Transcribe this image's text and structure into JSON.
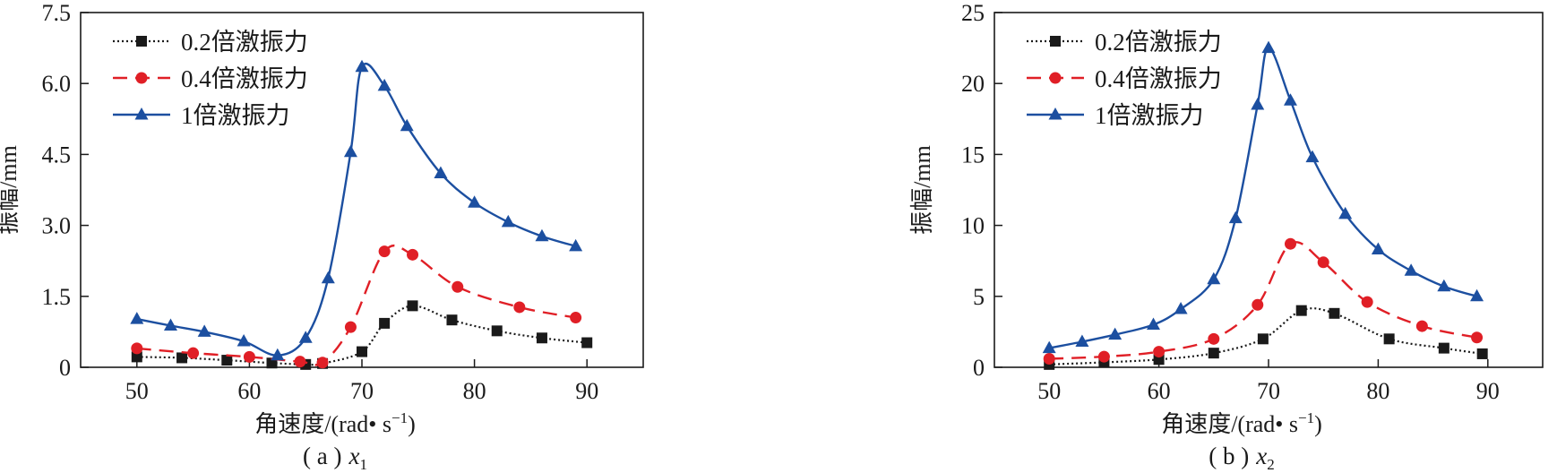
{
  "chart_data": [
    {
      "type": "line",
      "caption_prefix": "( a )",
      "caption_var": "x",
      "caption_sub": "1",
      "xlabel": "角速度/(rad• s",
      "xlabel_sup": "−1",
      "xlabel_end": ")",
      "ylabel": "振幅/mm",
      "xlim": [
        45,
        95
      ],
      "ylim": [
        0,
        7.5
      ],
      "xticks": [
        "50",
        "60",
        "70",
        "80",
        "90"
      ],
      "yticks": [
        "0",
        "1.5",
        "3.0",
        "4.5",
        "6.0",
        "7.5"
      ],
      "legend_position": "top-left",
      "series": [
        {
          "name": "0.2倍激振力",
          "color": "#1a1a1a",
          "marker": "square",
          "dash": "dotted",
          "x": [
            50,
            54,
            58,
            62,
            65,
            66.5,
            70,
            72,
            74.5,
            78,
            82,
            86,
            90
          ],
          "y": [
            0.22,
            0.2,
            0.15,
            0.09,
            0.06,
            0.08,
            0.33,
            0.93,
            1.3,
            1.0,
            0.77,
            0.62,
            0.52
          ]
        },
        {
          "name": "0.4倍激振力",
          "color": "#e01f26",
          "marker": "circle",
          "dash": "dashed",
          "x": [
            50,
            55,
            60,
            64.5,
            66.5,
            69,
            72,
            74.5,
            78.5,
            84,
            89
          ],
          "y": [
            0.4,
            0.3,
            0.22,
            0.12,
            0.1,
            0.85,
            2.45,
            2.38,
            1.7,
            1.27,
            1.05
          ]
        },
        {
          "name": "1倍激振力",
          "color": "#1c4fa0",
          "marker": "triangle",
          "dash": "solid",
          "x": [
            50,
            53,
            56,
            59.5,
            62.5,
            65,
            67,
            69,
            70,
            72,
            74,
            77,
            80,
            83,
            86,
            89
          ],
          "y": [
            1.02,
            0.88,
            0.75,
            0.55,
            0.25,
            0.62,
            1.88,
            4.55,
            6.35,
            5.95,
            5.1,
            4.1,
            3.48,
            3.07,
            2.77,
            2.56
          ]
        }
      ]
    },
    {
      "type": "line",
      "caption_prefix": "( b )",
      "caption_var": "x",
      "caption_sub": "2",
      "xlabel": "角速度/(rad• s",
      "xlabel_sup": "−1",
      "xlabel_end": ")",
      "ylabel": "振幅/mm",
      "xlim": [
        45,
        95
      ],
      "ylim": [
        0,
        25
      ],
      "xticks": [
        "50",
        "60",
        "70",
        "80",
        "90"
      ],
      "yticks": [
        "0",
        "5",
        "10",
        "15",
        "20",
        "25"
      ],
      "legend_position": "top-left",
      "series": [
        {
          "name": "0.2倍激振力",
          "color": "#1a1a1a",
          "marker": "square",
          "dash": "dotted",
          "x": [
            50,
            55,
            60,
            65,
            69.5,
            73,
            76,
            81,
            86,
            89.5
          ],
          "y": [
            0.2,
            0.35,
            0.55,
            1.0,
            2.0,
            4.0,
            3.8,
            2.0,
            1.35,
            0.95
          ]
        },
        {
          "name": "0.4倍激振力",
          "color": "#e01f26",
          "marker": "circle",
          "dash": "dashed",
          "x": [
            50,
            55,
            60,
            65,
            69,
            72,
            75,
            79,
            84,
            89
          ],
          "y": [
            0.6,
            0.75,
            1.1,
            2.0,
            4.4,
            8.7,
            7.4,
            4.6,
            2.9,
            2.1
          ]
        },
        {
          "name": "1倍激振力",
          "color": "#1c4fa0",
          "marker": "triangle",
          "dash": "solid",
          "x": [
            50,
            53,
            56,
            59.5,
            62,
            65,
            67,
            69,
            70,
            72,
            74,
            77,
            80,
            83,
            86,
            89
          ],
          "y": [
            1.35,
            1.8,
            2.3,
            3.0,
            4.1,
            6.2,
            10.5,
            18.5,
            22.5,
            18.8,
            14.8,
            10.8,
            8.3,
            6.8,
            5.7,
            5.0
          ]
        }
      ]
    }
  ]
}
